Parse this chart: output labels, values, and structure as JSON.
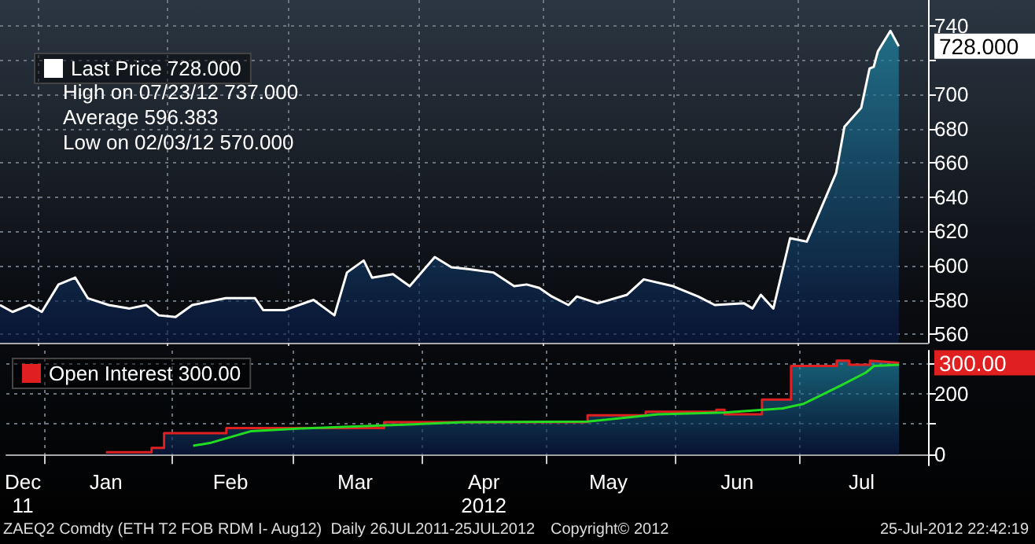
{
  "chart_data": [
    {
      "type": "area",
      "xlim": [
        "2011-12-23",
        "2012-08-01"
      ],
      "ylim": [
        555,
        755
      ],
      "yticks": [
        560,
        580,
        600,
        620,
        640,
        660,
        680,
        700,
        {
          "value": 720,
          "label": null
        },
        740
      ],
      "xticks": [
        {
          "value": "2012-01-01",
          "label": null
        },
        {
          "value": "2012-02-01",
          "label": null
        },
        {
          "value": "2012-03-01",
          "label": null
        },
        {
          "value": "2012-04-01",
          "label": null
        },
        {
          "value": "2012-05-01",
          "label": null
        },
        {
          "value": "2012-06-01",
          "label": null
        },
        {
          "value": "2012-07-01",
          "label": null
        }
      ],
      "tick_labels": "y",
      "grid": true,
      "legend": "top left",
      "annotations": [
        {
          "text": "728.000",
          "x": "2012-07-25",
          "y": 728
        },
        "High on 07/23/12 737.000",
        "Average 596.383",
        "Low on 02/03/12 570.000"
      ],
      "series": [
        {
          "name": "Last Price 728.000",
          "color": "#ffffff",
          "x": [
            "2011-12-23",
            "2011-12-26",
            "2011-12-30",
            "2012-01-02",
            "2012-01-06",
            "2012-01-10",
            "2012-01-13",
            "2012-01-18",
            "2012-01-23",
            "2012-01-27",
            "2012-01-30",
            "2012-02-03",
            "2012-02-07",
            "2012-02-15",
            "2012-02-22",
            "2012-02-24",
            "2012-02-29",
            "2012-03-07",
            "2012-03-12",
            "2012-03-15",
            "2012-03-19",
            "2012-03-21",
            "2012-03-26",
            "2012-03-30",
            "2012-04-05",
            "2012-04-09",
            "2012-04-13",
            "2012-04-19",
            "2012-04-24",
            "2012-04-27",
            "2012-04-30",
            "2012-05-03",
            "2012-05-07",
            "2012-05-09",
            "2012-05-14",
            "2012-05-21",
            "2012-05-25",
            "2012-06-01",
            "2012-06-07",
            "2012-06-11",
            "2012-06-18",
            "2012-06-20",
            "2012-06-22",
            "2012-06-25",
            "2012-06-29",
            "2012-07-03",
            "2012-07-10",
            "2012-07-12",
            "2012-07-16",
            "2012-07-18",
            "2012-07-19",
            "2012-07-20",
            "2012-07-23",
            "2012-07-25"
          ],
          "values": [
            577,
            573,
            577,
            573,
            589,
            593,
            581,
            577,
            575,
            577,
            571,
            570,
            577,
            581,
            581,
            574,
            574,
            580,
            571,
            596,
            603,
            593,
            595,
            588,
            605,
            599,
            598,
            596,
            588,
            589,
            587,
            582,
            577,
            582,
            578,
            583,
            592,
            588,
            582,
            577,
            578,
            575,
            583,
            575,
            616,
            614,
            654,
            681,
            692,
            715,
            716,
            725,
            737,
            728
          ]
        }
      ]
    },
    {
      "type": "area",
      "xlim": [
        "2011-12-23",
        "2012-08-01"
      ],
      "ylim": [
        -35,
        340
      ],
      "yticks": [
        0,
        {
          "value": 100,
          "label": null
        },
        200,
        {
          "value": 300,
          "label": null
        }
      ],
      "xticks": [
        {
          "value": "2011-12-27",
          "label": "Dec\n11"
        },
        {
          "value": "2012-01-01",
          "label": null
        },
        {
          "value": "2012-01-16",
          "label": "Jan"
        },
        {
          "value": "2012-02-01",
          "label": null
        },
        {
          "value": "2012-02-15",
          "label": "Feb"
        },
        {
          "value": "2012-03-01",
          "label": null
        },
        {
          "value": "2012-03-16",
          "label": "Mar"
        },
        {
          "value": "2012-04-01",
          "label": null
        },
        {
          "value": "2012-04-16",
          "label": "Apr\n2012"
        },
        {
          "value": "2012-05-01",
          "label": null
        },
        {
          "value": "2012-05-16",
          "label": "May"
        },
        {
          "value": "2012-06-01",
          "label": null
        },
        {
          "value": "2012-06-16",
          "label": "Jun"
        },
        {
          "value": "2012-07-01",
          "label": null
        },
        {
          "value": "2012-07-16",
          "label": "Jul"
        }
      ],
      "grid": true,
      "legend": "top left",
      "annotations": [
        {
          "text": "300.00",
          "x": "2012-07-25",
          "y": 300
        },
        "ZAEQ2 Comdty (ETH T2 FOB RDM I- Aug12)  Daily 26JUL2011-25JUL2012",
        "Copyright© 2012",
        "25-Jul-2012 22:42:19"
      ],
      "series": [
        {
          "name": "Open Interest 300.00",
          "color": "#e02020",
          "x": [
            "2012-01-16",
            "2012-01-27",
            "2012-01-27",
            "2012-01-30",
            "2012-01-30",
            "2012-02-14",
            "2012-02-14",
            "2012-03-23",
            "2012-03-23",
            "2012-05-11",
            "2012-05-11",
            "2012-05-25",
            "2012-05-25",
            "2012-06-11",
            "2012-06-11",
            "2012-06-13",
            "2012-06-13",
            "2012-06-22",
            "2012-06-22",
            "2012-06-29",
            "2012-06-29",
            "2012-07-10",
            "2012-07-10",
            "2012-07-13",
            "2012-07-13",
            "2012-07-18",
            "2012-07-18",
            "2012-07-25"
          ],
          "values": [
            8,
            8,
            22,
            22,
            70,
            70,
            87,
            87,
            106,
            106,
            129,
            129,
            140,
            140,
            147,
            147,
            132,
            132,
            180,
            180,
            290,
            290,
            307,
            307,
            294,
            294,
            307,
            300
          ]
        },
        {
          "type": "line",
          "color": "#22dd22",
          "x": [
            "2012-02-06",
            "2012-02-10",
            "2012-02-20",
            "2012-03-02",
            "2012-03-26",
            "2012-04-11",
            "2012-05-11",
            "2012-05-28",
            "2012-06-13",
            "2012-06-27",
            "2012-07-02",
            "2012-07-11",
            "2012-07-17",
            "2012-07-19",
            "2012-07-25"
          ],
          "values": [
            29,
            38,
            77,
            85,
            97,
            106,
            108,
            132,
            138,
            151,
            166,
            226,
            268,
            290,
            294
          ]
        }
      ]
    }
  ]
}
